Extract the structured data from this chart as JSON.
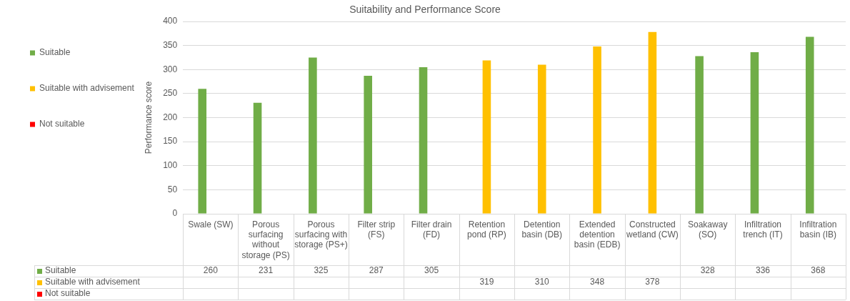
{
  "chart_data": {
    "type": "bar",
    "title": "Suitability and Performance Score",
    "ylabel": "Performance score",
    "categories": [
      "Swale (SW)",
      "Porous surfacing without storage (PS)",
      "Porous surfacing with storage (PS+)",
      "Filter strip (FS)",
      "Filter drain (FD)",
      "Retention pond (RP)",
      "Detention basin (DB)",
      "Extended detention basin (EDB)",
      "Constructed wetland (CW)",
      "Soakaway (SO)",
      "Infiltration trench (IT)",
      "Infiltration basin (IB)"
    ],
    "series": [
      {
        "name": "Suitable",
        "color": "#70ad47",
        "values": [
          260,
          231,
          325,
          287,
          305,
          null,
          null,
          null,
          null,
          328,
          336,
          368
        ]
      },
      {
        "name": "Suitable with advisement",
        "color": "#ffc000",
        "values": [
          null,
          null,
          null,
          null,
          null,
          319,
          310,
          348,
          378,
          null,
          null,
          null
        ]
      },
      {
        "name": "Not suitable",
        "color": "#ff0000",
        "values": [
          null,
          null,
          null,
          null,
          null,
          null,
          null,
          null,
          null,
          null,
          null,
          null
        ]
      }
    ],
    "ylim": [
      0,
      400
    ],
    "yticks": [
      0,
      50,
      100,
      150,
      200,
      250,
      300,
      350,
      400
    ],
    "grid": "y",
    "legend": "left",
    "data_labels": true
  }
}
